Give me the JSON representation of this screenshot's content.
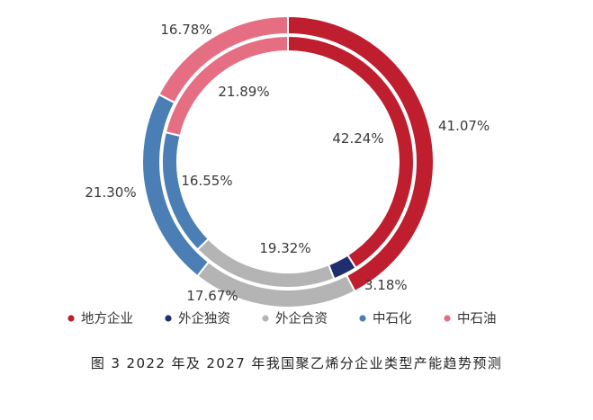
{
  "caption": "图 3  2022 年及 2027 年我国聚乙烯分企业类型产能趋势预测",
  "chart_data": {
    "type": "pie",
    "style": "nested-donut",
    "categories": [
      "地方企业",
      "外企独资",
      "外企合资",
      "中石化",
      "中石油"
    ],
    "colors": [
      "#BE1E2D",
      "#1F2E6E",
      "#B4B4B4",
      "#4A7EB5",
      "#E66E83"
    ],
    "series": [
      {
        "values": [
          41.07,
          0,
          17.67,
          21.3,
          16.78
        ]
      },
      {
        "values": [
          42.24,
          3.18,
          19.32,
          16.55,
          21.89
        ]
      }
    ],
    "value_labels": {
      "outer": [
        "41.07%",
        "17.67%",
        "21.30%",
        "16.78%"
      ],
      "inner": [
        "42.24%",
        "3.18%",
        "19.32%",
        "16.55%",
        "21.89%"
      ]
    },
    "legend_position": "bottom"
  }
}
